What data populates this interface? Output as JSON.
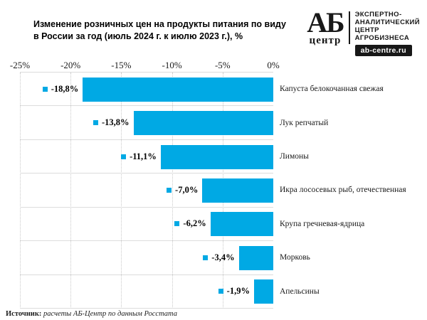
{
  "title": {
    "line1": "Изменение розничных цен на продукты питания по виду",
    "line2": "в России за год (июль 2024 г. к июлю 2023 г.), %"
  },
  "logo": {
    "abbr": "АБ",
    "caption": "центр",
    "tagline": [
      "ЭКСПЕРТНО-",
      "АНАЛИТИЧЕСКИЙ",
      "ЦЕНТР",
      "АГРОБИЗНЕСА"
    ],
    "site": "ab-centre.ru"
  },
  "chart_data": {
    "type": "bar",
    "orientation": "horizontal",
    "title": "Изменение розничных цен на продукты питания по виду в России за год (июль 2024 г. к июлю 2023 г.), %",
    "categories": [
      "Капуста белокочанная свежая",
      "Лук репчатый",
      "Лимоны",
      "Икра лососевых рыб, отечественная",
      "Крупа гречневая-ядрица",
      "Морковь",
      "Апельсины"
    ],
    "values": [
      -18.8,
      -13.8,
      -11.1,
      -7.0,
      -6.2,
      -3.4,
      -1.9
    ],
    "value_labels": [
      "-18,8%",
      "-13,8%",
      "-11,1%",
      "-7,0%",
      "-6,2%",
      "-3,4%",
      "-1,9%"
    ],
    "xlim": [
      -25,
      0
    ],
    "x_ticks": [
      "-25%",
      "-20%",
      "-15%",
      "-10%",
      "-5%",
      "0%"
    ],
    "bar_color": "#00A9E4",
    "grid": "vertical-dotted",
    "axis_position": "top"
  },
  "source": {
    "prefix": "Источник:",
    "text": " расчеты АБ-Центр по данным Росстата"
  }
}
